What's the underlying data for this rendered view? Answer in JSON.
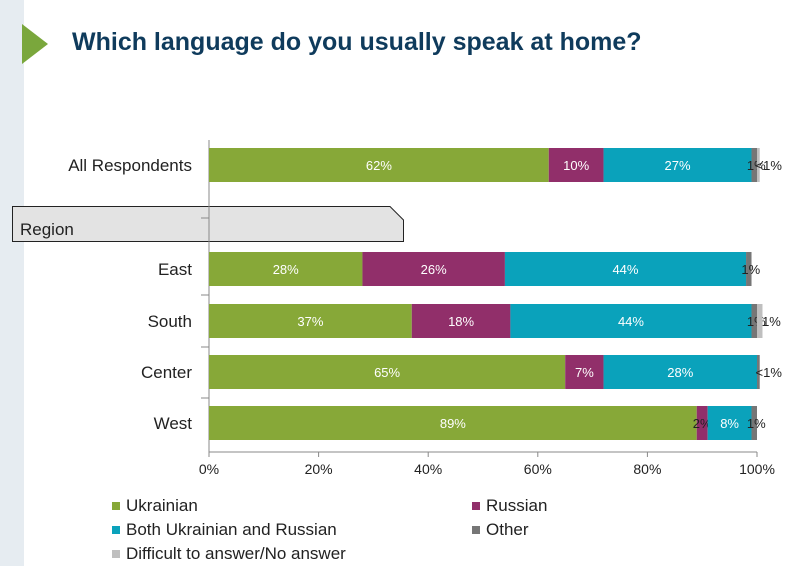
{
  "page": {
    "title": "Which language do you usually speak at home?",
    "region_label": "Region"
  },
  "colors": {
    "ukrainian": "#87a838",
    "russian": "#912f6a",
    "both": "#0aa2bb",
    "other": "#767676",
    "difficult": "#bfbfbf",
    "accent_arrow": "#7aa73c",
    "title": "#0f3b5c"
  },
  "legend": [
    {
      "label": "Ukrainian",
      "color_key": "ukrainian"
    },
    {
      "label": "Russian",
      "color_key": "russian"
    },
    {
      "label": "Both Ukrainian and Russian",
      "color_key": "both"
    },
    {
      "label": "Other",
      "color_key": "other"
    },
    {
      "label": "Difficult to answer/No answer",
      "color_key": "difficult"
    }
  ],
  "chart_data": {
    "type": "bar",
    "orientation": "horizontal",
    "stacked": true,
    "title": "Which language do you usually speak at home?",
    "categories": [
      "All Respondents",
      "East",
      "South",
      "Center",
      "West"
    ],
    "group_labels": [
      "Region"
    ],
    "series": [
      {
        "name": "Ukrainian",
        "color_key": "ukrainian",
        "values": [
          62,
          28,
          37,
          65,
          89
        ],
        "labels": [
          "62%",
          "28%",
          "37%",
          "65%",
          "89%"
        ]
      },
      {
        "name": "Russian",
        "color_key": "russian",
        "values": [
          10,
          26,
          18,
          7,
          2
        ],
        "labels": [
          "10%",
          "26%",
          "18%",
          "7%",
          "2%"
        ]
      },
      {
        "name": "Both Ukrainian and Russian",
        "color_key": "both",
        "values": [
          27,
          44,
          44,
          28,
          8
        ],
        "labels": [
          "27%",
          "44%",
          "44%",
          "28%",
          "8%"
        ]
      },
      {
        "name": "Other",
        "color_key": "other",
        "values": [
          1,
          1,
          1,
          0.5,
          1
        ],
        "labels": [
          "1%",
          "1%",
          "1%",
          "",
          "1%"
        ]
      },
      {
        "name": "Difficult to answer/No answer",
        "color_key": "difficult",
        "values": [
          0.5,
          0,
          1,
          0,
          0
        ],
        "labels": [
          "<1%",
          "",
          "1%",
          "<1%",
          ""
        ]
      }
    ],
    "xlim": [
      0,
      100
    ],
    "x_ticks": [
      "0%",
      "20%",
      "40%",
      "60%",
      "80%",
      "100%"
    ],
    "grid": false,
    "legend_position": "bottom"
  }
}
